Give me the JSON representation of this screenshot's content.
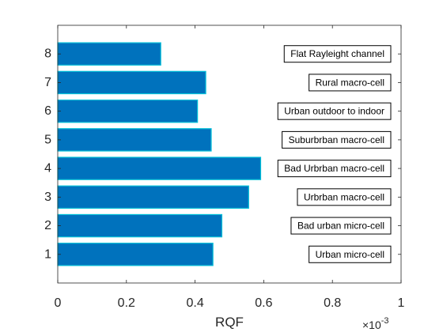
{
  "chart_data": {
    "type": "bar",
    "orientation": "horizontal",
    "categories": [
      "1",
      "2",
      "3",
      "4",
      "5",
      "6",
      "7",
      "8"
    ],
    "values": [
      0.000452,
      0.000478,
      0.000556,
      0.000591,
      0.000447,
      0.000407,
      0.000431,
      0.0003
    ],
    "annotations": [
      "Urban micro-cell",
      "Bad urban micro-cell",
      "Urbrban macro-cell",
      "Bad Urbrban macro-cell",
      "Suburbrban macro-cell",
      "Urban outdoor to indoor",
      "Rural macro-cell",
      "Flat Rayleight channel"
    ],
    "xlabel": "RQF",
    "ylabel": "",
    "xlim": [
      0,
      0.001
    ],
    "ylim": [
      0,
      9
    ],
    "x_ticks": [
      "0",
      "0.2",
      "0.4",
      "0.6",
      "0.8",
      "1"
    ],
    "x_exponent": "×10",
    "x_exponent_power": "-3",
    "y_ticks": [
      "1",
      "2",
      "3",
      "4",
      "5",
      "6",
      "7",
      "8"
    ],
    "grid": false,
    "colors": {
      "bar_fill": "#0072BD",
      "bar_edge": "#00BFD8",
      "axis": "#262626"
    }
  }
}
